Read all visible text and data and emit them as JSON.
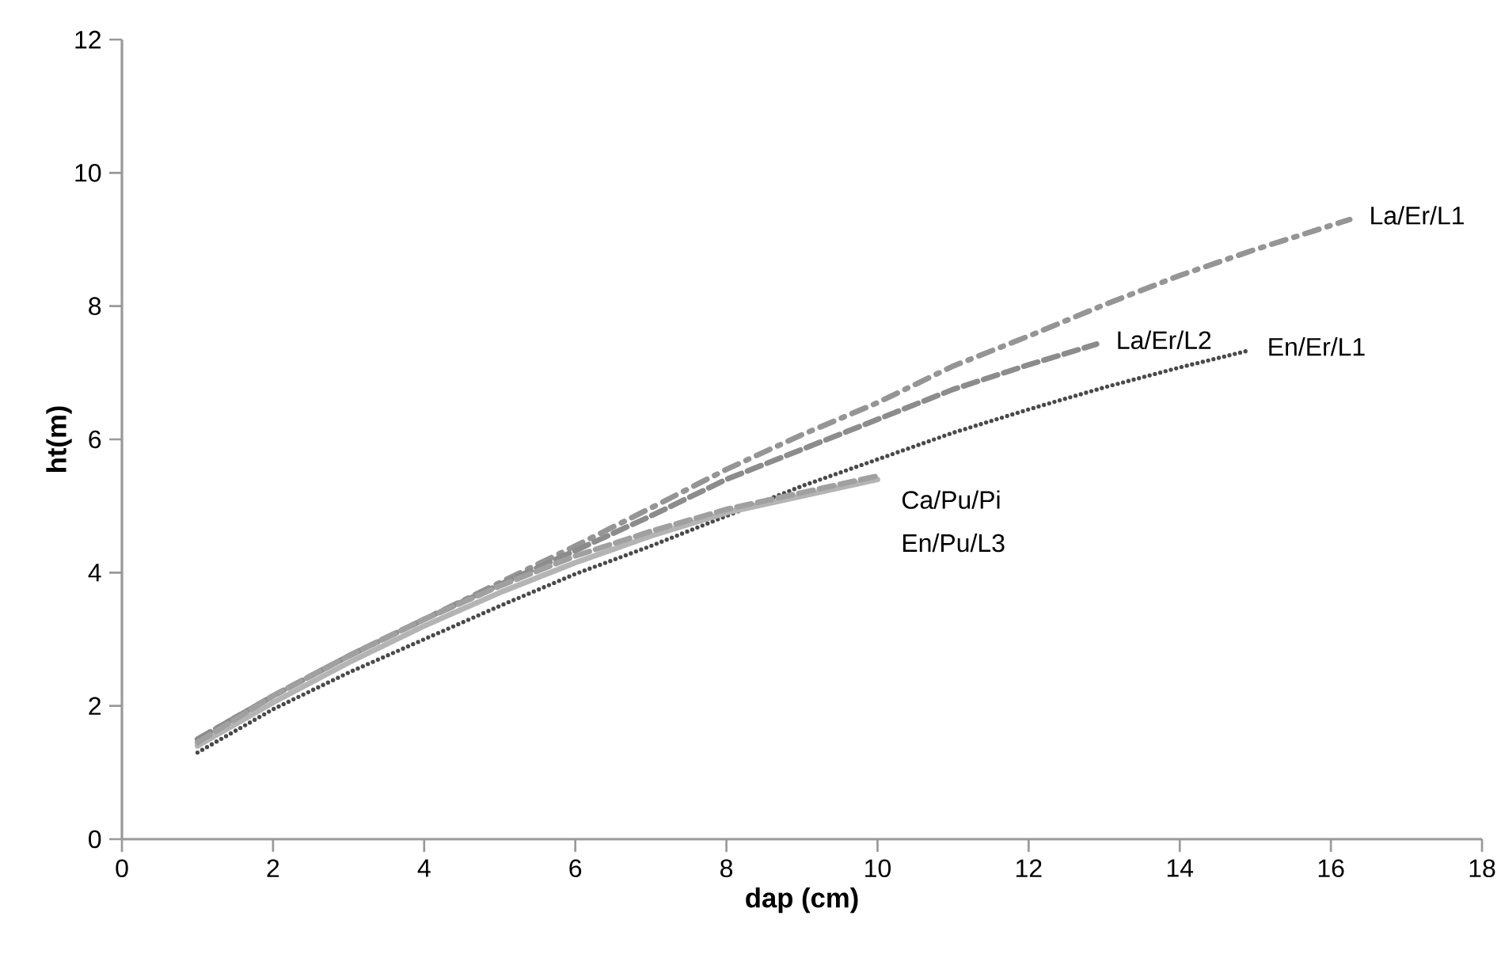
{
  "chart_data": {
    "type": "line",
    "xlabel": "dap (cm)",
    "ylabel": "ht(m)",
    "xlim": [
      0,
      18
    ],
    "xticks": [
      0,
      2,
      4,
      6,
      8,
      10,
      12,
      14,
      16,
      18
    ],
    "ylim": [
      0,
      12
    ],
    "yticks": [
      0,
      2,
      4,
      6,
      8,
      10,
      12
    ],
    "grid": false,
    "legend": false,
    "marker": "none",
    "series": [
      {
        "name": "La/Er/L1",
        "color": "#959595",
        "line_style": "dashdot",
        "x": [
          1,
          2,
          3,
          4,
          5,
          6,
          7,
          8,
          9,
          10,
          11,
          12,
          13,
          14,
          15,
          16.25
        ],
        "values": [
          1.5,
          2.15,
          2.75,
          3.3,
          3.85,
          4.4,
          4.97,
          5.55,
          6.07,
          6.55,
          7.1,
          7.55,
          8.02,
          8.46,
          8.85,
          9.3
        ]
      },
      {
        "name": "La/Er/L2",
        "color": "#8c8c8c",
        "line_style": "dashed",
        "x": [
          1,
          2,
          3,
          4,
          5,
          6,
          7,
          8,
          9,
          10,
          11,
          12,
          12.9
        ],
        "values": [
          1.5,
          2.15,
          2.75,
          3.3,
          3.82,
          4.33,
          4.85,
          5.4,
          5.85,
          6.3,
          6.75,
          7.12,
          7.43
        ]
      },
      {
        "name": "En/Er/L1",
        "color": "#4a4a4a",
        "line_style": "dotted",
        "x": [
          1,
          2,
          3,
          4,
          5,
          6,
          7,
          8,
          9,
          10,
          11,
          12,
          13,
          14,
          14.9
        ],
        "values": [
          1.3,
          1.95,
          2.5,
          3.0,
          3.5,
          3.98,
          4.4,
          4.85,
          5.3,
          5.7,
          6.1,
          6.45,
          6.78,
          7.08,
          7.33
        ]
      },
      {
        "name": "Ca/Pu/Pi",
        "color": "#b4b4b4",
        "line_style": "solid",
        "x": [
          1,
          2,
          3,
          4,
          5,
          6,
          7,
          8,
          9,
          10
        ],
        "values": [
          1.4,
          2.05,
          2.65,
          3.2,
          3.7,
          4.15,
          4.55,
          4.9,
          5.15,
          5.4
        ]
      },
      {
        "name": "En/Pu/L3",
        "color": "#a0a0a0",
        "line_style": "dashed",
        "x": [
          1,
          2,
          3,
          4,
          5,
          6,
          7,
          8,
          9,
          10
        ],
        "values": [
          1.45,
          2.15,
          2.75,
          3.3,
          3.8,
          4.25,
          4.62,
          4.95,
          5.2,
          5.45
        ]
      }
    ]
  }
}
